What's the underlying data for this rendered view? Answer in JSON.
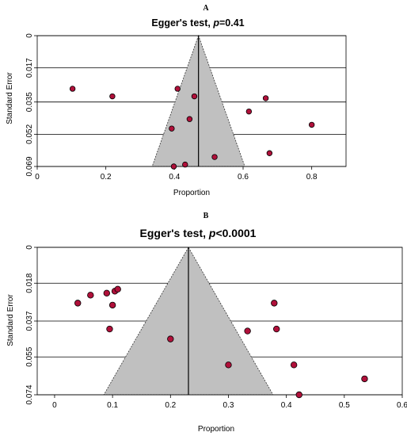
{
  "chart_data": [
    {
      "type": "scatter",
      "panel_label": "A",
      "title_prefix": "Egger's test, ",
      "title_p": "p",
      "title_suffix": "=0.41",
      "xlabel": "Proportion",
      "ylabel": "Standard Error",
      "xlim": [
        0,
        0.9
      ],
      "ylim": [
        0.069,
        0
      ],
      "y_reversed": true,
      "xticks": [
        "0",
        "0.2",
        "0.4",
        "0.6",
        "0.8"
      ],
      "xtick_values": [
        0,
        0.2,
        0.4,
        0.6,
        0.8
      ],
      "yticks": [
        "0",
        "0.017",
        "0.035",
        "0.052",
        "0.069"
      ],
      "ytick_values": [
        0,
        0.017,
        0.035,
        0.052,
        0.069
      ],
      "pooled_estimate": 0.47,
      "funnel_base_at_se": 0.07,
      "funnel_base": [
        0.333,
        0.607
      ],
      "funnel_color": "#c0c0c0",
      "point_color": "#b0103a",
      "points": [
        {
          "x": 0.103,
          "y": 0.028
        },
        {
          "x": 0.219,
          "y": 0.032
        },
        {
          "x": 0.409,
          "y": 0.028
        },
        {
          "x": 0.458,
          "y": 0.032
        },
        {
          "x": 0.666,
          "y": 0.033
        },
        {
          "x": 0.617,
          "y": 0.04
        },
        {
          "x": 0.444,
          "y": 0.044
        },
        {
          "x": 0.392,
          "y": 0.049
        },
        {
          "x": 0.8,
          "y": 0.047
        },
        {
          "x": 0.517,
          "y": 0.064
        },
        {
          "x": 0.677,
          "y": 0.062
        },
        {
          "x": 0.398,
          "y": 0.069
        },
        {
          "x": 0.431,
          "y": 0.068
        }
      ]
    },
    {
      "type": "scatter",
      "panel_label": "B",
      "title_prefix": "Egger's test, ",
      "title_p": "p",
      "title_suffix": "<0.0001",
      "xlabel": "Proportion",
      "ylabel": "Standard Error",
      "xlim": [
        -0.03,
        0.6
      ],
      "ylim": [
        0.074,
        0
      ],
      "y_reversed": true,
      "xticks": [
        "0",
        "0.1",
        "0.2",
        "0.3",
        "0.4",
        "0.5",
        "0.6"
      ],
      "xtick_values": [
        0,
        0.1,
        0.2,
        0.3,
        0.4,
        0.5,
        0.6
      ],
      "yticks": [
        "0",
        "0.018",
        "0.037",
        "0.055",
        "0.074"
      ],
      "ytick_values": [
        0,
        0.018,
        0.037,
        0.055,
        0.074
      ],
      "pooled_estimate": 0.231,
      "funnel_base_at_se": 0.075,
      "funnel_base": [
        0.083,
        0.379
      ],
      "funnel_color": "#c0c0c0",
      "point_color": "#b0103a",
      "points": [
        {
          "x": 0.04,
          "y": 0.028
        },
        {
          "x": 0.062,
          "y": 0.024
        },
        {
          "x": 0.09,
          "y": 0.023
        },
        {
          "x": 0.104,
          "y": 0.022
        },
        {
          "x": 0.109,
          "y": 0.021
        },
        {
          "x": 0.1,
          "y": 0.029
        },
        {
          "x": 0.095,
          "y": 0.041
        },
        {
          "x": 0.2,
          "y": 0.046
        },
        {
          "x": 0.379,
          "y": 0.028
        },
        {
          "x": 0.333,
          "y": 0.042
        },
        {
          "x": 0.383,
          "y": 0.041
        },
        {
          "x": 0.3,
          "y": 0.059
        },
        {
          "x": 0.413,
          "y": 0.059
        },
        {
          "x": 0.535,
          "y": 0.066
        },
        {
          "x": 0.422,
          "y": 0.074
        }
      ]
    }
  ]
}
